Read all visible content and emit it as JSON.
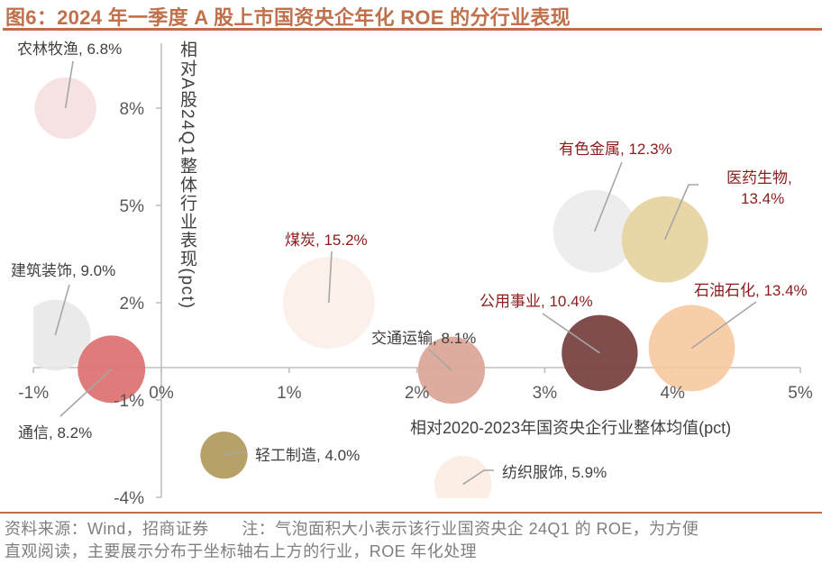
{
  "title": "图6：2024 年一季度 A 股上市国资央企年化 ROE 的分行业表现",
  "footer": {
    "line1": "资料来源：Wind，招商证券　　注：气泡面积大小表示该行业国资央企 24Q1 的 ROE，为方便",
    "line2": "直观阅读，主要展示分布于坐标轴右上方的行业，ROE 年化处理"
  },
  "chart_data": {
    "type": "scatter",
    "subtype": "bubble",
    "title": "2024 年一季度 A 股上市国资央企年化 ROE 的分行业表现",
    "xlabel": "相对2020-2023年国资央企行业整体均值(pct)",
    "ylabel": "相对A股24Q1整体行业表现(pct)",
    "size_meaning": "该行业国资央企 24Q1 的 ROE（年化，%）",
    "xlim": [
      -1,
      5
    ],
    "ylim": [
      -4,
      10
    ],
    "xticks": [
      -1,
      0,
      1,
      2,
      3,
      4,
      5
    ],
    "xtick_labels": [
      "-1%",
      "0%",
      "1%",
      "2%",
      "3%",
      "4%",
      "5%"
    ],
    "yticks": [
      -4,
      -1,
      2,
      5,
      8
    ],
    "ytick_labels": [
      "-4%",
      "-1%",
      "2%",
      "5%",
      "8%"
    ],
    "grid": false,
    "legend": "none",
    "label_colors": {
      "highlight": "#8b1c1c",
      "normal": "#404040"
    },
    "points": [
      {
        "name": "农林牧渔",
        "x": -0.75,
        "y": 8.0,
        "roe": 6.8,
        "color": "#f5e0e0",
        "highlight": false,
        "label_lines": [
          "农林牧渔, 6.8%"
        ]
      },
      {
        "name": "建筑装饰",
        "x": -0.83,
        "y": 1.0,
        "roe": 9.0,
        "color": "#e8e8e8",
        "highlight": false,
        "label_lines": [
          "建筑装饰, 9.0%"
        ]
      },
      {
        "name": "通信",
        "x": -0.39,
        "y": -0.05,
        "roe": 8.2,
        "color": "#dc7070",
        "highlight": false,
        "label_lines": [
          "通信, 8.2%"
        ]
      },
      {
        "name": "轻工制造",
        "x": 0.49,
        "y": -2.7,
        "roe": 4.0,
        "color": "#b09a5b",
        "highlight": false,
        "label_lines": [
          "轻工制造, 4.0%"
        ]
      },
      {
        "name": "煤炭",
        "x": 1.31,
        "y": 2.0,
        "roe": 15.2,
        "color": "#fcf0e8",
        "highlight": true,
        "label_lines": [
          "煤炭, 15.2%"
        ]
      },
      {
        "name": "交通运输",
        "x": 2.27,
        "y": -0.08,
        "roe": 8.1,
        "color": "#dba597",
        "highlight": false,
        "label_lines": [
          "交通运输, 8.1%"
        ]
      },
      {
        "name": "纺织服饰",
        "x": 2.36,
        "y": -3.6,
        "roe": 5.9,
        "color": "#fcece3",
        "highlight": false,
        "label_lines": [
          "纺织服饰, 5.9%"
        ]
      },
      {
        "name": "公用事业",
        "x": 3.43,
        "y": 0.45,
        "roe": 10.4,
        "color": "#763e3d",
        "highlight": true,
        "label_lines": [
          "公用事业, 10.4%"
        ]
      },
      {
        "name": "有色金属",
        "x": 3.39,
        "y": 4.2,
        "roe": 12.3,
        "color": "#ececec",
        "highlight": true,
        "label_lines": [
          "有色金属, 12.3%"
        ]
      },
      {
        "name": "医药生物",
        "x": 3.94,
        "y": 3.95,
        "roe": 13.4,
        "color": "#e6d3a0",
        "highlight": true,
        "label_lines": [
          "医药生物,",
          "13.4%"
        ]
      },
      {
        "name": "石油石化",
        "x": 4.15,
        "y": 0.6,
        "roe": 13.4,
        "color": "#f6caa1",
        "highlight": true,
        "label_lines": [
          "石油石化, 13.4%"
        ]
      }
    ]
  }
}
